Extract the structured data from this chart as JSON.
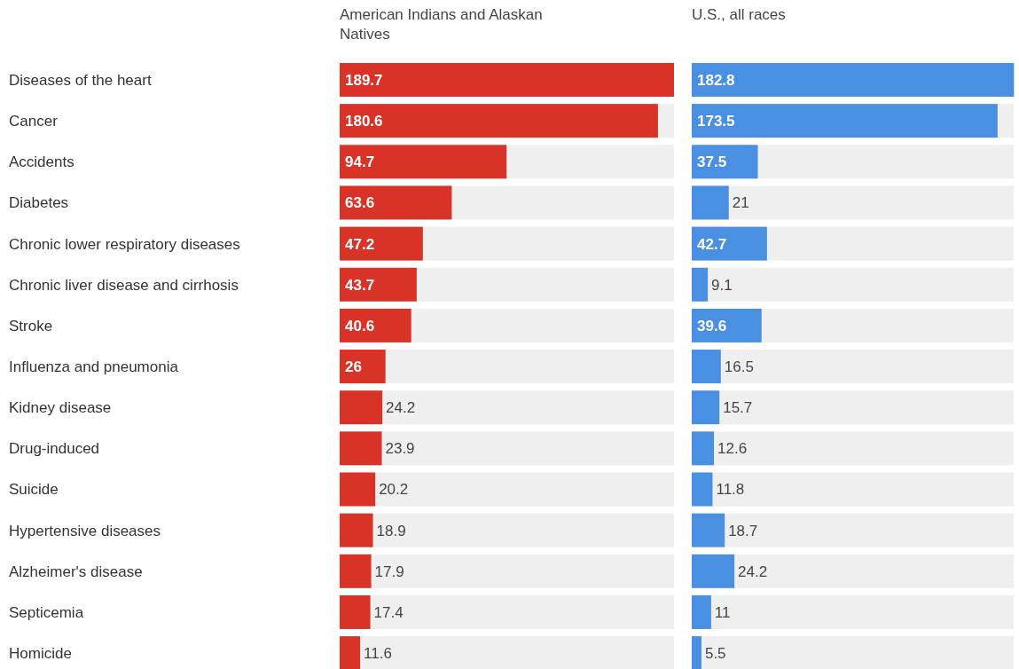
{
  "chart_data": [
    {
      "type": "bar",
      "orientation": "horizontal",
      "title": "American Indians and Alaskan Natives",
      "categories": [
        "Diseases of the heart",
        "Cancer",
        "Accidents",
        "Diabetes",
        "Chronic lower respiratory diseases",
        "Chronic liver disease and cirrhosis",
        "Stroke",
        "Influenza and pneumonia",
        "Kidney disease",
        "Drug-induced",
        "Suicide",
        "Hypertensive diseases",
        "Alzheimer's disease",
        "Septicemia",
        "Homicide"
      ],
      "values": [
        189.7,
        180.6,
        94.7,
        63.6,
        47.2,
        43.7,
        40.6,
        26,
        24.2,
        23.9,
        20.2,
        18.9,
        17.9,
        17.4,
        11.6
      ],
      "color": "#d93327",
      "data_labels": true
    },
    {
      "type": "bar",
      "orientation": "horizontal",
      "title": "U.S., all races",
      "categories": [
        null,
        null,
        null,
        null,
        null,
        null,
        null,
        null,
        null,
        null,
        null,
        null,
        null,
        null,
        null
      ],
      "values": [
        182.8,
        173.5,
        37.5,
        21,
        42.7,
        9.1,
        39.6,
        16.5,
        15.7,
        12.6,
        11.8,
        18.7,
        24.2,
        11,
        5.5
      ],
      "color": "#4a90e2",
      "data_labels": true
    }
  ]
}
